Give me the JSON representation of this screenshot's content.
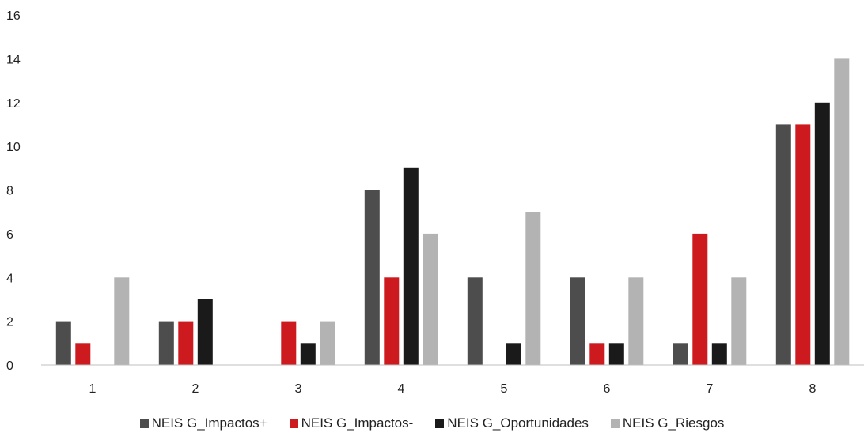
{
  "chart_data": {
    "type": "bar",
    "categories": [
      "1",
      "2",
      "3",
      "4",
      "5",
      "6",
      "7",
      "8"
    ],
    "series": [
      {
        "name": "NEIS G_Impactos+",
        "color": "#4d4d4d",
        "values": [
          2,
          2,
          0,
          8,
          4,
          4,
          1,
          11
        ]
      },
      {
        "name": "NEIS G_Impactos-",
        "color": "#cc1a1f",
        "values": [
          1,
          2,
          2,
          4,
          0,
          1,
          6,
          11
        ]
      },
      {
        "name": "NEIS G_Oportunidades",
        "color": "#1a1a1a",
        "values": [
          0,
          3,
          1,
          9,
          1,
          1,
          1,
          12
        ]
      },
      {
        "name": "NEIS G_Riesgos",
        "color": "#b3b3b3",
        "values": [
          4,
          0,
          2,
          6,
          7,
          4,
          4,
          14
        ]
      }
    ],
    "y_ticks": [
      "0",
      "2",
      "4",
      "6",
      "8",
      "10",
      "12",
      "14",
      "16"
    ],
    "ylim": [
      0,
      16
    ],
    "grid": false,
    "legend_position": "bottom",
    "title": "",
    "xlabel": "",
    "ylabel": ""
  }
}
